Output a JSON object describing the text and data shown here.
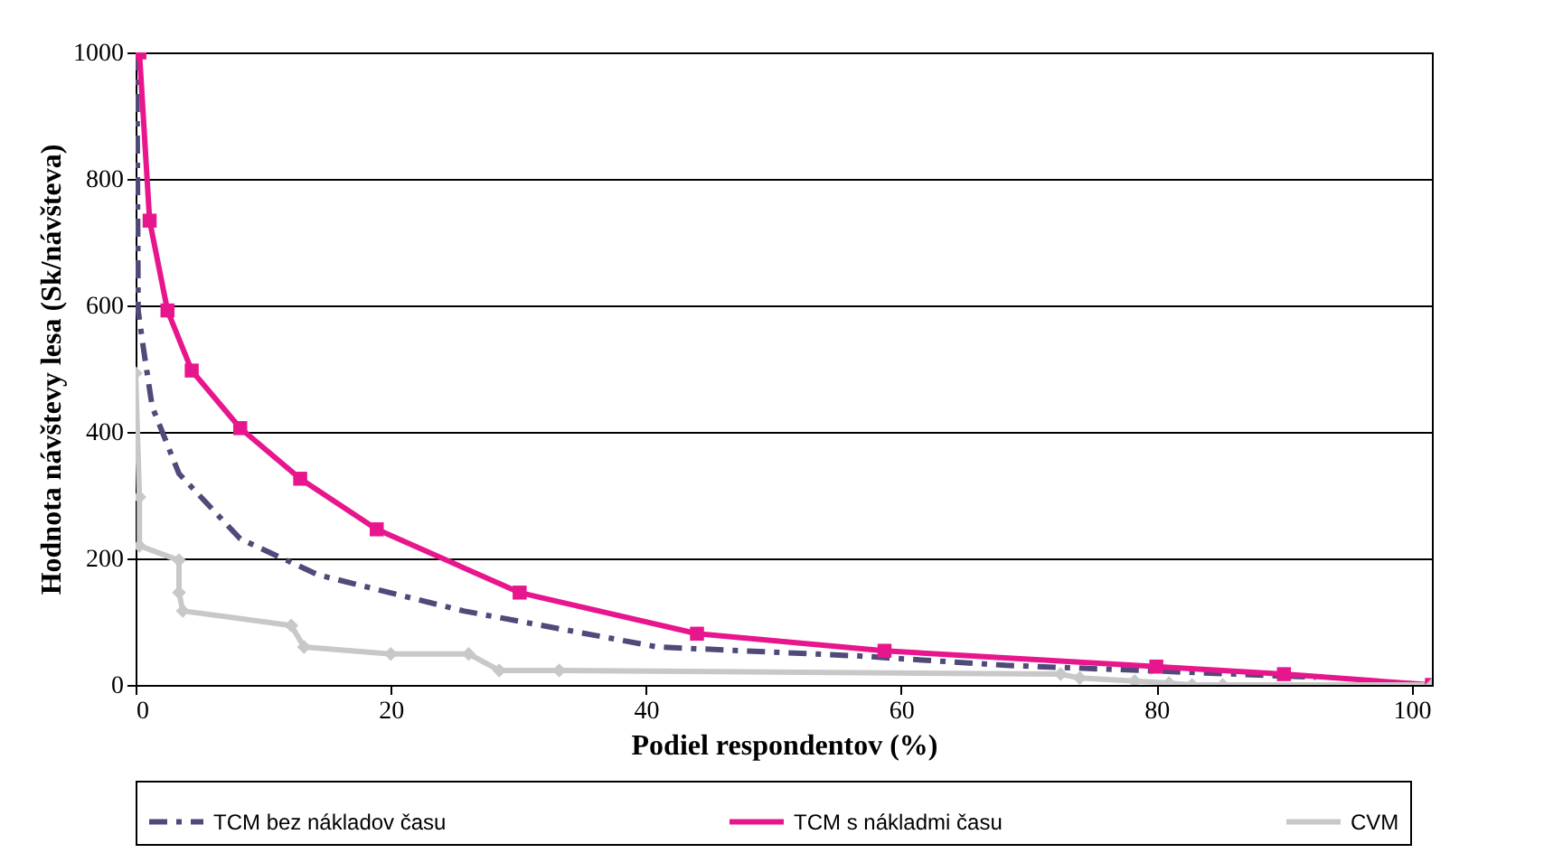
{
  "chart_data": {
    "type": "line",
    "xlabel": "Podiel respondentov (%)",
    "ylabel": "Hodnota návštevy lesa (Sk/návšteva)",
    "xlim": [
      0,
      101.6
    ],
    "xticks": [
      0,
      20,
      40,
      60,
      80,
      100
    ],
    "ylim": [
      0,
      1000
    ],
    "yticks": [
      0,
      200,
      400,
      600,
      800,
      1000
    ],
    "grid": "y",
    "legend": "bottom",
    "series": [
      {
        "name": "TCM bez nákladov času",
        "color": "#4f4a7a",
        "line_style": "dashed",
        "marker": "none",
        "x": [
          0.1,
          0.2,
          0.6,
          1.3,
          3.4,
          8.2,
          14.3,
          25.7,
          40.9,
          56.5,
          68.2,
          80,
          92.5
        ],
        "values": [
          1000,
          592,
          534,
          440,
          334,
          231,
          174,
          117,
          60,
          46,
          31,
          22,
          12
        ]
      },
      {
        "name": "TCM s nákladmi času",
        "color": "#e8168c",
        "line_style": "solid",
        "marker": "square",
        "x": [
          0.3,
          1.1,
          2.5,
          4.4,
          8.2,
          12.9,
          18.9,
          30.1,
          44,
          58.7,
          80,
          90,
          101.6
        ],
        "values": [
          1000,
          734,
          592,
          497,
          406,
          326,
          246,
          146,
          81,
          54,
          29,
          17,
          0
        ]
      },
      {
        "name": "CVM",
        "color": "#c8c8c8",
        "line_style": "solid",
        "marker": "diamond",
        "x": [
          0,
          0.3,
          0.3,
          3.4,
          3.4,
          3.7,
          12.2,
          13.2,
          20,
          26.1,
          28.5,
          33.2,
          72.5,
          74,
          78.3,
          81,
          82.8,
          85.2,
          101.6
        ],
        "values": [
          493,
          297,
          220,
          197,
          146,
          117,
          94,
          60,
          49,
          49,
          23,
          23,
          17,
          11,
          6,
          3,
          0,
          0,
          0
        ]
      }
    ]
  }
}
